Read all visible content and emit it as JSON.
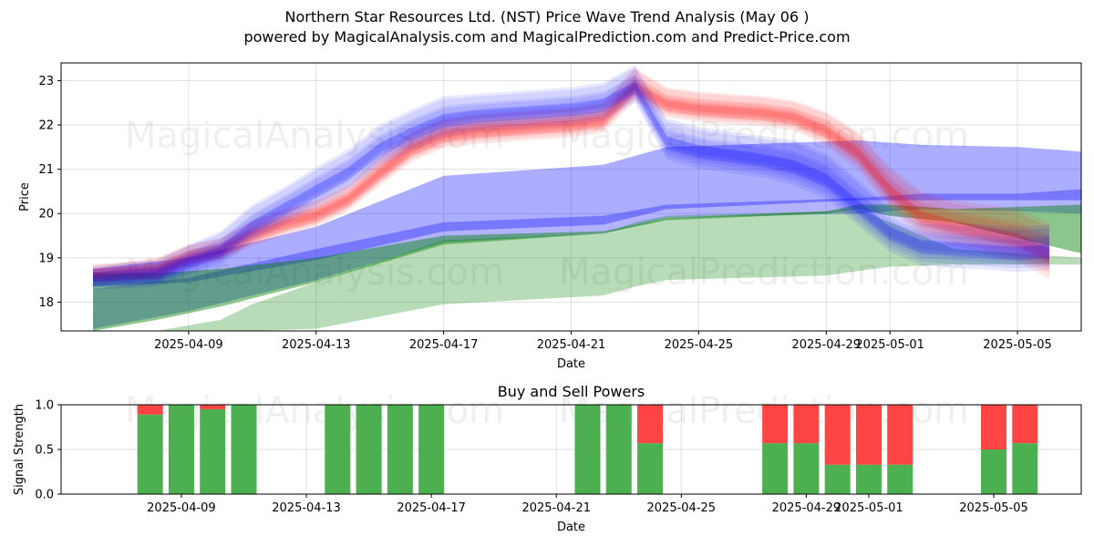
{
  "title_line1": "Northern Star Resources Ltd. (NST) Price Wave Trend Analysis (May 06 )",
  "title_line2": "powered by MagicalAnalysis.com and MagicalPrediction.com and Predict-Price.com",
  "watermarks": [
    "MagicalAnalysis.com",
    "MagicalPrediction.com"
  ],
  "colors": {
    "red": "#ff0000",
    "blue": "#0000ff",
    "green": "#008000",
    "buy": "#4caf50",
    "sell": "#ff4444",
    "grid": "#e0e0e0"
  },
  "chart_data": [
    {
      "type": "area",
      "title": "",
      "xlabel": "Date",
      "ylabel": "Price",
      "x_range": [
        "2025-04-05",
        "2025-05-07"
      ],
      "ylim": [
        17.35,
        23.4
      ],
      "yticks": [
        18,
        19,
        20,
        21,
        22,
        23
      ],
      "xtick_labels": [
        "2025-04-09",
        "2025-04-13",
        "2025-04-17",
        "2025-04-21",
        "2025-04-25",
        "2025-04-29",
        "2025-05-01",
        "2025-05-05"
      ],
      "series": [
        {
          "name": "red wave",
          "color": "red",
          "x": [
            "2025-04-06",
            "2025-04-07",
            "2025-04-08",
            "2025-04-09",
            "2025-04-10",
            "2025-04-11",
            "2025-04-12",
            "2025-04-13",
            "2025-04-14",
            "2025-04-15",
            "2025-04-16",
            "2025-04-17",
            "2025-04-18",
            "2025-04-19",
            "2025-04-20",
            "2025-04-21",
            "2025-04-22",
            "2025-04-23",
            "2025-04-24",
            "2025-04-25",
            "2025-04-26",
            "2025-04-27",
            "2025-04-28",
            "2025-04-29",
            "2025-04-30",
            "2025-05-01",
            "2025-05-02",
            "2025-05-03",
            "2025-05-04",
            "2025-05-05",
            "2025-05-06"
          ],
          "values": [
            18.6,
            18.65,
            18.7,
            19.0,
            19.15,
            19.5,
            19.75,
            19.95,
            20.3,
            20.9,
            21.45,
            21.75,
            21.85,
            21.9,
            21.95,
            22.0,
            22.1,
            22.85,
            22.45,
            22.35,
            22.3,
            22.25,
            22.15,
            21.85,
            21.35,
            20.5,
            19.9,
            19.7,
            19.55,
            19.4,
            19.05
          ],
          "spread": [
            0.25,
            0.25,
            0.3,
            0.3,
            0.3,
            0.35,
            0.35,
            0.35,
            0.35,
            0.4,
            0.4,
            0.4,
            0.4,
            0.4,
            0.4,
            0.4,
            0.4,
            0.45,
            0.4,
            0.4,
            0.4,
            0.4,
            0.4,
            0.45,
            0.5,
            0.55,
            0.6,
            0.6,
            0.65,
            0.7,
            0.75
          ]
        },
        {
          "name": "blue wave",
          "color": "blue",
          "x": [
            "2025-04-06",
            "2025-04-07",
            "2025-04-08",
            "2025-04-09",
            "2025-04-10",
            "2025-04-11",
            "2025-04-12",
            "2025-04-13",
            "2025-04-14",
            "2025-04-15",
            "2025-04-16",
            "2025-04-17",
            "2025-04-18",
            "2025-04-19",
            "2025-04-20",
            "2025-04-21",
            "2025-04-22",
            "2025-04-23",
            "2025-04-24",
            "2025-04-25",
            "2025-04-26",
            "2025-04-27",
            "2025-04-28",
            "2025-04-29",
            "2025-04-30",
            "2025-05-01",
            "2025-05-02",
            "2025-05-03",
            "2025-05-04",
            "2025-05-05",
            "2025-05-06"
          ],
          "values": [
            18.5,
            18.55,
            18.6,
            18.9,
            19.15,
            19.7,
            20.1,
            20.5,
            20.9,
            21.45,
            21.8,
            22.1,
            22.2,
            22.25,
            22.3,
            22.35,
            22.45,
            22.85,
            21.6,
            21.4,
            21.3,
            21.2,
            21.05,
            20.75,
            20.15,
            19.55,
            19.25,
            19.2,
            19.15,
            19.1,
            19.15
          ],
          "spread": [
            0.3,
            0.35,
            0.35,
            0.4,
            0.45,
            0.5,
            0.5,
            0.55,
            0.55,
            0.55,
            0.55,
            0.55,
            0.5,
            0.5,
            0.5,
            0.5,
            0.5,
            0.5,
            0.55,
            0.55,
            0.55,
            0.55,
            0.6,
            0.6,
            0.6,
            0.6,
            0.6,
            0.6,
            0.6,
            0.6,
            0.6
          ]
        },
        {
          "name": "blue band upper",
          "color": "blue",
          "x": [
            "2025-04-06",
            "2025-04-09",
            "2025-04-13",
            "2025-04-17",
            "2025-04-22",
            "2025-04-24",
            "2025-04-30",
            "2025-05-02",
            "2025-05-05",
            "2025-05-07"
          ],
          "upper": [
            18.75,
            19.0,
            19.7,
            20.85,
            21.1,
            21.5,
            21.65,
            21.55,
            21.5,
            21.4
          ],
          "lower": [
            18.35,
            18.45,
            18.95,
            19.6,
            19.75,
            20.1,
            20.3,
            20.3,
            20.3,
            20.3
          ]
        },
        {
          "name": "blue band lower",
          "color": "blue",
          "x": [
            "2025-04-06",
            "2025-04-09",
            "2025-04-13",
            "2025-04-17",
            "2025-04-22",
            "2025-04-24",
            "2025-04-30",
            "2025-05-02",
            "2025-05-05",
            "2025-05-07"
          ],
          "upper": [
            18.3,
            18.55,
            19.2,
            19.8,
            19.95,
            20.2,
            20.35,
            20.45,
            20.45,
            20.55
          ],
          "lower": [
            17.4,
            17.8,
            18.5,
            19.35,
            19.55,
            19.9,
            20.0,
            20.1,
            20.05,
            20.0
          ]
        },
        {
          "name": "green band upper",
          "color": "green",
          "x": [
            "2025-04-06",
            "2025-04-08",
            "2025-04-10",
            "2025-04-13",
            "2025-04-17",
            "2025-04-22",
            "2025-04-24",
            "2025-04-29",
            "2025-04-30",
            "2025-05-01",
            "2025-05-03",
            "2025-05-07"
          ],
          "upper": [
            18.65,
            18.65,
            18.75,
            19.0,
            19.5,
            19.6,
            19.9,
            20.05,
            20.2,
            20.2,
            20.1,
            20.2
          ],
          "lower": [
            17.35,
            17.6,
            17.9,
            18.45,
            19.3,
            19.55,
            19.85,
            20.0,
            20.1,
            19.95,
            19.8,
            19.1
          ]
        },
        {
          "name": "green band lower",
          "color": "green",
          "x": [
            "2025-04-06",
            "2025-04-08",
            "2025-04-10",
            "2025-04-11",
            "2025-04-13",
            "2025-04-17",
            "2025-04-22",
            "2025-04-23",
            "2025-04-24",
            "2025-04-29",
            "2025-04-30",
            "2025-05-01",
            "2025-05-03",
            "2025-05-07"
          ],
          "upper": [
            17.35,
            17.35,
            17.6,
            17.95,
            18.45,
            19.4,
            19.55,
            19.8,
            19.95,
            20.05,
            20.1,
            19.8,
            19.2,
            19.0
          ],
          "lower": [
            17.35,
            17.35,
            17.35,
            17.35,
            17.4,
            17.95,
            18.15,
            18.35,
            18.5,
            18.6,
            18.7,
            18.8,
            18.85,
            18.85
          ]
        }
      ]
    },
    {
      "type": "bar",
      "title": "Buy and Sell Powers",
      "xlabel": "Date",
      "ylabel": "Signal Strength",
      "ylim": [
        0.0,
        1.0
      ],
      "yticks": [
        "0.0",
        "0.5",
        "1.0"
      ],
      "xtick_labels": [
        "2025-04-09",
        "2025-04-13",
        "2025-04-17",
        "2025-04-21",
        "2025-04-25",
        "2025-04-29",
        "2025-05-01",
        "2025-05-05"
      ],
      "categories": [
        "2025-04-08",
        "2025-04-09",
        "2025-04-10",
        "2025-04-11",
        "2025-04-14",
        "2025-04-15",
        "2025-04-16",
        "2025-04-17",
        "2025-04-22",
        "2025-04-23",
        "2025-04-24",
        "2025-04-28",
        "2025-04-29",
        "2025-04-30",
        "2025-05-01",
        "2025-05-02",
        "2025-05-05",
        "2025-05-06"
      ],
      "series": [
        {
          "name": "Buy",
          "color": "buy",
          "values": [
            0.89,
            1.0,
            0.95,
            1.0,
            1.0,
            1.0,
            1.0,
            1.0,
            1.0,
            1.0,
            0.57,
            0.57,
            0.57,
            0.33,
            0.33,
            0.33,
            0.5,
            0.57
          ]
        },
        {
          "name": "Sell",
          "color": "sell",
          "values": [
            0.11,
            0.0,
            0.05,
            0.0,
            0.0,
            0.0,
            0.0,
            0.0,
            0.0,
            0.0,
            0.43,
            0.43,
            0.43,
            0.67,
            0.67,
            0.67,
            0.5,
            0.43
          ]
        }
      ]
    }
  ]
}
